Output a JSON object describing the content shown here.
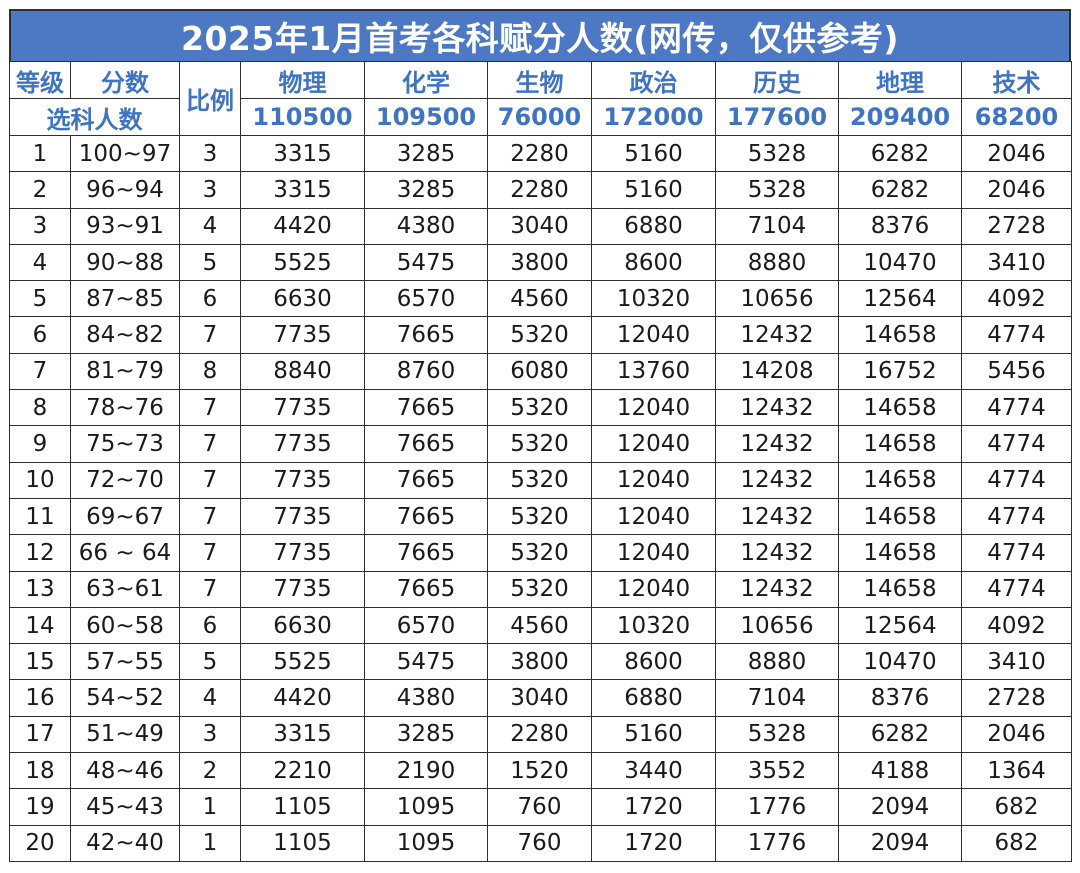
{
  "title": "2025年1月首考各科赋分人数(网传，仅供参考)",
  "header": {
    "grade": "等级",
    "score": "分数",
    "ratio": "比例",
    "selected_count": "选科人数",
    "subjects": [
      "物理",
      "化学",
      "生物",
      "政治",
      "历史",
      "地理",
      "技术"
    ],
    "counts": [
      "110500",
      "109500",
      "76000",
      "172000",
      "177600",
      "209400",
      "68200"
    ]
  },
  "colors": {
    "title_bg": "#4d79c4",
    "header_text": "#3f74c2",
    "border": "#2f2f2f"
  },
  "rows": [
    {
      "grade": "1",
      "score": "100~97",
      "ratio": "3",
      "values": [
        "3315",
        "3285",
        "2280",
        "5160",
        "5328",
        "6282",
        "2046"
      ]
    },
    {
      "grade": "2",
      "score": "96~94",
      "ratio": "3",
      "values": [
        "3315",
        "3285",
        "2280",
        "5160",
        "5328",
        "6282",
        "2046"
      ]
    },
    {
      "grade": "3",
      "score": "93~91",
      "ratio": "4",
      "values": [
        "4420",
        "4380",
        "3040",
        "6880",
        "7104",
        "8376",
        "2728"
      ]
    },
    {
      "grade": "4",
      "score": "90~88",
      "ratio": "5",
      "values": [
        "5525",
        "5475",
        "3800",
        "8600",
        "8880",
        "10470",
        "3410"
      ]
    },
    {
      "grade": "5",
      "score": "87~85",
      "ratio": "6",
      "values": [
        "6630",
        "6570",
        "4560",
        "10320",
        "10656",
        "12564",
        "4092"
      ]
    },
    {
      "grade": "6",
      "score": "84~82",
      "ratio": "7",
      "values": [
        "7735",
        "7665",
        "5320",
        "12040",
        "12432",
        "14658",
        "4774"
      ]
    },
    {
      "grade": "7",
      "score": "81~79",
      "ratio": "8",
      "values": [
        "8840",
        "8760",
        "6080",
        "13760",
        "14208",
        "16752",
        "5456"
      ]
    },
    {
      "grade": "8",
      "score": "78~76",
      "ratio": "7",
      "values": [
        "7735",
        "7665",
        "5320",
        "12040",
        "12432",
        "14658",
        "4774"
      ]
    },
    {
      "grade": "9",
      "score": "75~73",
      "ratio": "7",
      "values": [
        "7735",
        "7665",
        "5320",
        "12040",
        "12432",
        "14658",
        "4774"
      ]
    },
    {
      "grade": "10",
      "score": "72~70",
      "ratio": "7",
      "values": [
        "7735",
        "7665",
        "5320",
        "12040",
        "12432",
        "14658",
        "4774"
      ]
    },
    {
      "grade": "11",
      "score": "69~67",
      "ratio": "7",
      "values": [
        "7735",
        "7665",
        "5320",
        "12040",
        "12432",
        "14658",
        "4774"
      ]
    },
    {
      "grade": "12",
      "score": "66 ~ 64",
      "ratio": "7",
      "values": [
        "7735",
        "7665",
        "5320",
        "12040",
        "12432",
        "14658",
        "4774"
      ]
    },
    {
      "grade": "13",
      "score": "63~61",
      "ratio": "7",
      "values": [
        "7735",
        "7665",
        "5320",
        "12040",
        "12432",
        "14658",
        "4774"
      ]
    },
    {
      "grade": "14",
      "score": "60~58",
      "ratio": "6",
      "values": [
        "6630",
        "6570",
        "4560",
        "10320",
        "10656",
        "12564",
        "4092"
      ]
    },
    {
      "grade": "15",
      "score": "57~55",
      "ratio": "5",
      "values": [
        "5525",
        "5475",
        "3800",
        "8600",
        "8880",
        "10470",
        "3410"
      ]
    },
    {
      "grade": "16",
      "score": "54~52",
      "ratio": "4",
      "values": [
        "4420",
        "4380",
        "3040",
        "6880",
        "7104",
        "8376",
        "2728"
      ]
    },
    {
      "grade": "17",
      "score": "51~49",
      "ratio": "3",
      "values": [
        "3315",
        "3285",
        "2280",
        "5160",
        "5328",
        "6282",
        "2046"
      ]
    },
    {
      "grade": "18",
      "score": "48~46",
      "ratio": "2",
      "values": [
        "2210",
        "2190",
        "1520",
        "3440",
        "3552",
        "4188",
        "1364"
      ]
    },
    {
      "grade": "19",
      "score": "45~43",
      "ratio": "1",
      "values": [
        "1105",
        "1095",
        "760",
        "1720",
        "1776",
        "2094",
        "682"
      ]
    },
    {
      "grade": "20",
      "score": "42~40",
      "ratio": "1",
      "values": [
        "1105",
        "1095",
        "760",
        "1720",
        "1776",
        "2094",
        "682"
      ]
    }
  ]
}
